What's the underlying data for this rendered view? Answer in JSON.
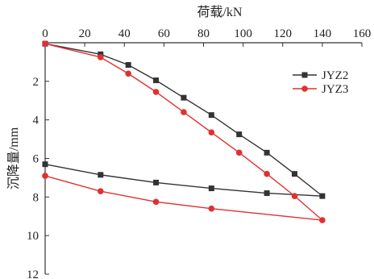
{
  "chart_data": {
    "type": "line",
    "xlabel": "荷载/kN",
    "ylabel": "沉降量/mm",
    "x_axis_position": "top",
    "y_axis_inverted": true,
    "xlim": [
      0,
      160
    ],
    "ylim": [
      0,
      12
    ],
    "x_ticks": [
      "0",
      "20",
      "40",
      "60",
      "80",
      "100",
      "120",
      "140",
      "160"
    ],
    "y_ticks": [
      "2",
      "4",
      "6",
      "8",
      "10",
      "12"
    ],
    "grid": false,
    "legend_position": "right",
    "series": [
      {
        "name": "JYZ2",
        "color": "#333333",
        "marker": "square",
        "x": [
          0,
          28,
          42,
          56,
          70,
          84,
          98,
          112,
          126,
          140,
          112,
          84,
          56,
          28,
          0
        ],
        "y": [
          0.05,
          0.6,
          1.15,
          1.95,
          2.85,
          3.75,
          4.75,
          5.7,
          6.8,
          7.95,
          7.8,
          7.55,
          7.25,
          6.85,
          6.3
        ]
      },
      {
        "name": "JYZ3",
        "color": "#e03030",
        "marker": "circle",
        "x": [
          0,
          28,
          42,
          56,
          70,
          84,
          98,
          112,
          126,
          140,
          84,
          56,
          28,
          0
        ],
        "y": [
          0.05,
          0.75,
          1.6,
          2.55,
          3.6,
          4.65,
          5.7,
          6.8,
          7.95,
          9.2,
          8.6,
          8.25,
          7.7,
          6.9
        ]
      }
    ]
  }
}
